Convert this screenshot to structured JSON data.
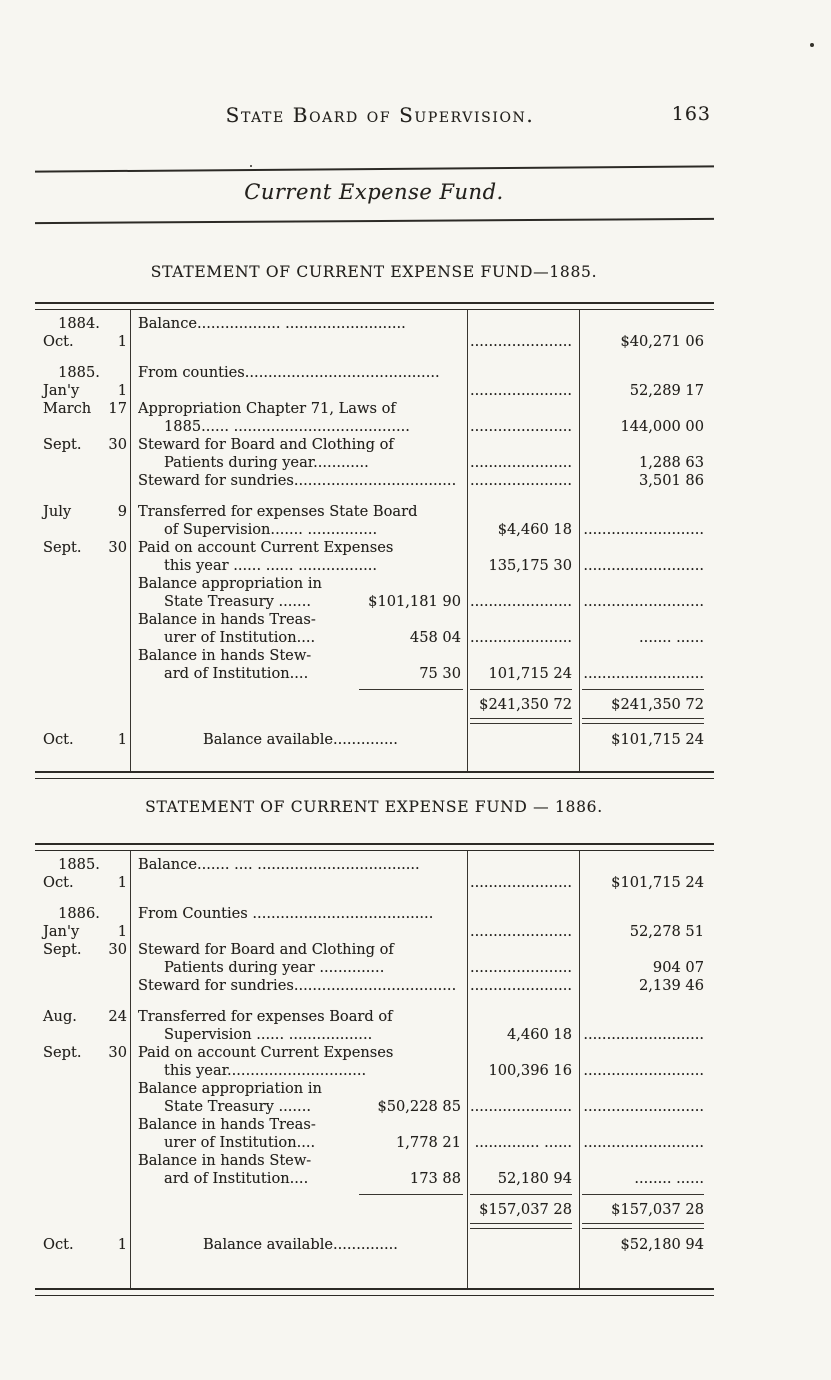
{
  "page": {
    "header_title": "State Board of Supervision.",
    "page_number": "163",
    "section_title": "Current Expense Fund."
  },
  "tables": [
    {
      "heading": "STATEMENT OF CURRENT EXPENSE FUND—1885.",
      "rows": [
        {
          "year": "1884.",
          "month": "Oct.",
          "day": "1",
          "l1": "Balance.................. ..........................",
          "c1": "......................",
          "c2": "$40,271 06"
        },
        {
          "year": "1885.",
          "month": "Jan'y",
          "day": "1",
          "l1": "From counties..........................................",
          "c1": "......................",
          "c2": "52,289 17"
        },
        {
          "month": "March",
          "day": "17",
          "l1": "Appropriation Chapter 71, Laws of",
          "l2": "1885...... ......................................",
          "c1": "......................",
          "c2": "144,000 00"
        },
        {
          "month": "Sept.",
          "day": "30",
          "l1": "Steward for Board and Clothing of",
          "l2": "Patients during year............",
          "c1": "......................",
          "c2": "1,288 63"
        },
        {
          "l1": "Steward for sundries...................................",
          "c1": "......................",
          "c2": "3,501 86"
        },
        {
          "month": "July",
          "day": "9",
          "l1": "Transferred for expenses State Board",
          "l2": "of Supervision....... ...............",
          "c1": "$4,460 18",
          "c2": ".........................."
        },
        {
          "month": "Sept.",
          "day": "30",
          "l1": "Paid on account Current Expenses",
          "l2": "this year ...... ...... .................",
          "c1": "135,175 30",
          "c2": ".........................."
        },
        {
          "l1": "Balance appropriation in",
          "l2": "State Treasury .......",
          "amt": "$101,181 90",
          "c1": "......................",
          "c2": ".........................."
        },
        {
          "l1": "Balance in hands Treas-",
          "l2": "urer of Institution....",
          "amt": "458 04",
          "c1": "......................",
          "c2": "....... ......"
        },
        {
          "l1": "Balance in hands Stew-",
          "l2": "ard of Institution....",
          "amt": "75 30",
          "c1": "101,715 24",
          "c2": ".........................."
        }
      ],
      "totals": {
        "c1": "$241,350 72",
        "c2": "$241,350 72"
      },
      "balance": {
        "month": "Oct.",
        "day": "1",
        "label": "Balance available..............",
        "amount": "$101,715 24"
      }
    },
    {
      "heading": "STATEMENT OF CURRENT EXPENSE FUND — 1886.",
      "rows": [
        {
          "year": "1885.",
          "month": "Oct.",
          "day": "1",
          "l1": "Balance....... .... ...................................",
          "c1": "......................",
          "c2": "$101,715 24"
        },
        {
          "year": "1886.",
          "month": "Jan'y",
          "day": "1",
          "l1": "From Counties .......................................",
          "c1": "......................",
          "c2": "52,278 51"
        },
        {
          "month": "Sept.",
          "day": "30",
          "l1": "Steward for Board and Clothing of",
          "l2": "Patients during year ..............",
          "c1": "......................",
          "c2": "904 07"
        },
        {
          "l1": "Steward for sundries...................................",
          "c1": "......................",
          "c2": "2,139 46"
        },
        {
          "month": "Aug.",
          "day": "24",
          "l1": "Transferred for expenses Board of",
          "l2": "Supervision ...... ..................",
          "c1": "4,460 18",
          "c2": ".........................."
        },
        {
          "month": "Sept.",
          "day": "30",
          "l1": "Paid on account Current Expenses",
          "l2": "this year..............................",
          "c1": "100,396 16",
          "c2": ".........................."
        },
        {
          "l1": "Balance appropriation in",
          "l2": "State Treasury .......",
          "amt": "$50,228 85",
          "c1": "......................",
          "c2": ".........................."
        },
        {
          "l1": "Balance in hands Treas-",
          "l2": "urer of Institution....",
          "amt": "1,778 21",
          "c1": ".............. ......",
          "c2": ".........................."
        },
        {
          "l1": "Balance in hands Stew-",
          "l2": "ard of Institution....",
          "amt": "173 88",
          "c1": "52,180 94",
          "c2": "........ ......"
        }
      ],
      "totals": {
        "c1": "$157,037 28",
        "c2": "$157,037 28"
      },
      "balance": {
        "month": "Oct.",
        "day": "1",
        "label": "Balance available..............",
        "amount": "$52,180 94"
      }
    }
  ]
}
